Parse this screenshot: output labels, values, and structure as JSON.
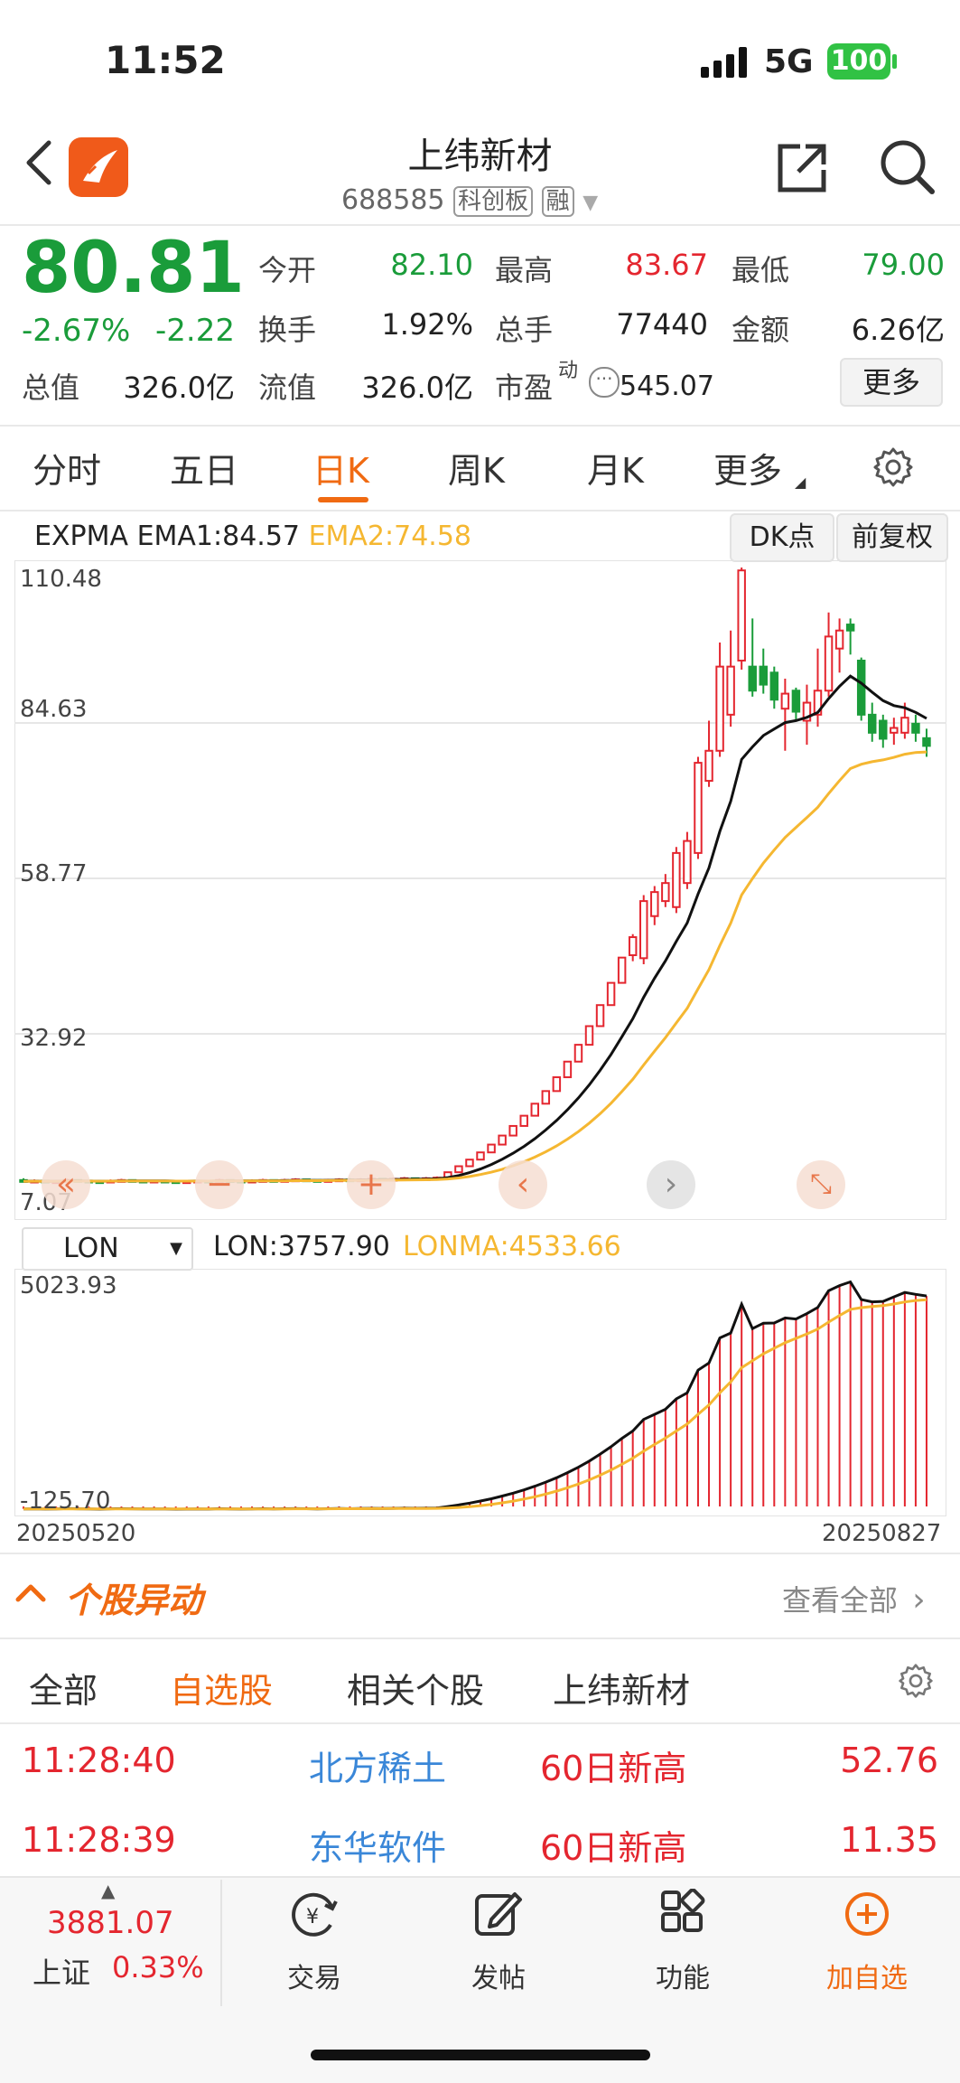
{
  "status_bar": {
    "time": "11:52",
    "network": "5G",
    "battery": "100"
  },
  "header": {
    "title": "上纬新材",
    "code": "688585",
    "board_badge": "科创板",
    "margin_badge": "融"
  },
  "quote": {
    "price": "80.81",
    "change_pct": "-2.67%",
    "change": "-2.22",
    "open_label": "今开",
    "open": "82.10",
    "high_label": "最高",
    "high": "83.67",
    "low_label": "最低",
    "low": "79.00",
    "turnover_label": "换手",
    "turnover": "1.92%",
    "volume_label": "总手",
    "volume": "77440",
    "amount_label": "金额",
    "amount": "6.26亿",
    "mktcap_label": "总值",
    "mktcap": "326.0亿",
    "float_label": "流值",
    "float": "326.0亿",
    "pe_label": "市盈",
    "pe_sup": "动",
    "pe": "545.07",
    "more_button": "更多"
  },
  "tabs": [
    "分时",
    "五日",
    "日K",
    "周K",
    "月K",
    "更多"
  ],
  "active_tab": "日K",
  "indicator": {
    "name": "EXPMA",
    "ema1": "EMA1:84.57",
    "ema2": "EMA2:74.58",
    "dk_button": "DK点",
    "adjust_button": "前复权"
  },
  "price_axis": [
    "110.48",
    "84.63",
    "58.77",
    "32.92",
    "7.07"
  ],
  "sub_indicator": {
    "select": "LON",
    "lon": "LON:3757.90",
    "lonma": "LONMA:4533.66",
    "top": "5023.93",
    "bottom": "-125.70"
  },
  "date_range": {
    "start": "20250520",
    "end": "20250827"
  },
  "colors": {
    "up": "#e4262f",
    "down": "#1a9c3a",
    "accent": "#f06a12",
    "ema2": "#f5b731",
    "link": "#3a87d8"
  },
  "chart_data": {
    "type": "candlestick",
    "ylim": [
      7.07,
      110.48
    ],
    "candles": [
      {
        "o": 8.6,
        "c": 8.4,
        "h": 8.9,
        "l": 8.2
      },
      {
        "o": 8.4,
        "c": 8.5,
        "h": 8.7,
        "l": 8.3
      },
      {
        "o": 8.5,
        "c": 8.3,
        "h": 8.6,
        "l": 8.2
      },
      {
        "o": 8.3,
        "c": 8.4,
        "h": 8.6,
        "l": 8.2
      },
      {
        "o": 8.4,
        "c": 8.6,
        "h": 8.8,
        "l": 8.3
      },
      {
        "o": 8.6,
        "c": 8.5,
        "h": 8.7,
        "l": 8.3
      },
      {
        "o": 8.5,
        "c": 8.4,
        "h": 8.6,
        "l": 8.2
      },
      {
        "o": 8.4,
        "c": 8.3,
        "h": 8.5,
        "l": 8.1
      },
      {
        "o": 8.3,
        "c": 8.5,
        "h": 8.7,
        "l": 8.2
      },
      {
        "o": 8.5,
        "c": 8.6,
        "h": 8.8,
        "l": 8.4
      },
      {
        "o": 8.6,
        "c": 8.5,
        "h": 8.7,
        "l": 8.4
      },
      {
        "o": 8.5,
        "c": 8.4,
        "h": 8.6,
        "l": 8.3
      },
      {
        "o": 8.4,
        "c": 8.5,
        "h": 8.6,
        "l": 8.3
      },
      {
        "o": 8.5,
        "c": 8.4,
        "h": 8.6,
        "l": 8.3
      },
      {
        "o": 8.4,
        "c": 8.3,
        "h": 8.5,
        "l": 8.2
      },
      {
        "o": 8.3,
        "c": 8.4,
        "h": 8.6,
        "l": 8.2
      },
      {
        "o": 8.4,
        "c": 8.5,
        "h": 8.6,
        "l": 8.3
      },
      {
        "o": 8.5,
        "c": 8.4,
        "h": 8.6,
        "l": 8.3
      },
      {
        "o": 8.4,
        "c": 8.6,
        "h": 8.8,
        "l": 8.3
      },
      {
        "o": 8.6,
        "c": 8.5,
        "h": 8.7,
        "l": 8.4
      },
      {
        "o": 8.5,
        "c": 8.4,
        "h": 8.6,
        "l": 8.3
      },
      {
        "o": 8.4,
        "c": 8.5,
        "h": 8.7,
        "l": 8.3
      },
      {
        "o": 8.5,
        "c": 8.6,
        "h": 8.8,
        "l": 8.4
      },
      {
        "o": 8.6,
        "c": 8.5,
        "h": 8.7,
        "l": 8.4
      },
      {
        "o": 8.5,
        "c": 8.6,
        "h": 8.8,
        "l": 8.4
      },
      {
        "o": 8.6,
        "c": 8.7,
        "h": 8.9,
        "l": 8.5
      },
      {
        "o": 8.7,
        "c": 8.6,
        "h": 8.8,
        "l": 8.5
      },
      {
        "o": 8.6,
        "c": 8.5,
        "h": 8.7,
        "l": 8.4
      },
      {
        "o": 8.5,
        "c": 8.6,
        "h": 8.8,
        "l": 8.4
      },
      {
        "o": 8.6,
        "c": 8.7,
        "h": 8.9,
        "l": 8.5
      },
      {
        "o": 8.7,
        "c": 8.6,
        "h": 8.9,
        "l": 8.5
      },
      {
        "o": 8.6,
        "c": 8.7,
        "h": 8.9,
        "l": 8.5
      },
      {
        "o": 8.7,
        "c": 8.8,
        "h": 9.0,
        "l": 8.6
      },
      {
        "o": 8.8,
        "c": 8.7,
        "h": 8.9,
        "l": 8.6
      },
      {
        "o": 8.7,
        "c": 8.8,
        "h": 9.0,
        "l": 8.6
      },
      {
        "o": 8.8,
        "c": 8.9,
        "h": 9.1,
        "l": 8.7
      },
      {
        "o": 8.9,
        "c": 8.8,
        "h": 9.0,
        "l": 8.7
      },
      {
        "o": 8.8,
        "c": 8.9,
        "h": 9.1,
        "l": 8.7
      },
      {
        "o": 8.9,
        "c": 9.0,
        "h": 9.2,
        "l": 8.8
      },
      {
        "o": 9.0,
        "c": 9.9,
        "h": 9.9,
        "l": 9.0
      },
      {
        "o": 9.9,
        "c": 10.9,
        "h": 10.9,
        "l": 9.9
      },
      {
        "o": 10.9,
        "c": 12.0,
        "h": 12.0,
        "l": 10.9
      },
      {
        "o": 12.0,
        "c": 13.2,
        "h": 13.2,
        "l": 12.0
      },
      {
        "o": 13.2,
        "c": 14.5,
        "h": 14.5,
        "l": 13.2
      },
      {
        "o": 14.5,
        "c": 16.0,
        "h": 16.0,
        "l": 14.5
      },
      {
        "o": 16.0,
        "c": 17.6,
        "h": 17.6,
        "l": 16.0
      },
      {
        "o": 17.6,
        "c": 19.3,
        "h": 19.3,
        "l": 17.6
      },
      {
        "o": 19.3,
        "c": 21.3,
        "h": 21.3,
        "l": 19.3
      },
      {
        "o": 21.3,
        "c": 23.4,
        "h": 23.4,
        "l": 21.3
      },
      {
        "o": 23.4,
        "c": 25.7,
        "h": 25.7,
        "l": 23.4
      },
      {
        "o": 25.7,
        "c": 28.3,
        "h": 28.3,
        "l": 25.7
      },
      {
        "o": 28.3,
        "c": 31.1,
        "h": 31.1,
        "l": 28.3
      },
      {
        "o": 31.1,
        "c": 34.2,
        "h": 34.2,
        "l": 31.1
      },
      {
        "o": 34.2,
        "c": 37.7,
        "h": 37.7,
        "l": 34.2
      },
      {
        "o": 37.7,
        "c": 41.4,
        "h": 41.4,
        "l": 37.7
      },
      {
        "o": 41.4,
        "c": 45.6,
        "h": 45.6,
        "l": 41.4
      },
      {
        "o": 46.0,
        "c": 49.0,
        "h": 49.5,
        "l": 45.0
      },
      {
        "o": 45.5,
        "c": 55.0,
        "h": 56.0,
        "l": 44.5
      },
      {
        "o": 52.5,
        "c": 56.5,
        "h": 57.5,
        "l": 51.0
      },
      {
        "o": 55.0,
        "c": 58.0,
        "h": 59.5,
        "l": 54.0
      },
      {
        "o": 54.0,
        "c": 63.0,
        "h": 64.0,
        "l": 53.0
      },
      {
        "o": 58.0,
        "c": 65.0,
        "h": 66.5,
        "l": 57.0
      },
      {
        "o": 63.0,
        "c": 78.0,
        "h": 79.0,
        "l": 62.0
      },
      {
        "o": 75.0,
        "c": 80.0,
        "h": 85.0,
        "l": 74.0
      },
      {
        "o": 80.0,
        "c": 94.0,
        "h": 98.0,
        "l": 79.0
      },
      {
        "o": 86.0,
        "c": 94.0,
        "h": 100.0,
        "l": 84.0
      },
      {
        "o": 95.0,
        "c": 110.0,
        "h": 110.48,
        "l": 93.5
      },
      {
        "o": 94.0,
        "c": 90.0,
        "h": 102.0,
        "l": 89.0
      },
      {
        "o": 94.0,
        "c": 91.0,
        "h": 97.0,
        "l": 89.5
      },
      {
        "o": 93.0,
        "c": 88.5,
        "h": 94.0,
        "l": 87.0
      },
      {
        "o": 87.0,
        "c": 89.5,
        "h": 92.0,
        "l": 80.0
      },
      {
        "o": 90.0,
        "c": 86.5,
        "h": 90.5,
        "l": 85.0
      },
      {
        "o": 85.0,
        "c": 88.0,
        "h": 91.0,
        "l": 81.0
      },
      {
        "o": 86.0,
        "c": 90.0,
        "h": 97.0,
        "l": 84.0
      },
      {
        "o": 90.0,
        "c": 99.0,
        "h": 103.0,
        "l": 89.0
      },
      {
        "o": 97.0,
        "c": 100.0,
        "h": 102.0,
        "l": 93.0
      },
      {
        "o": 101.0,
        "c": 100.0,
        "h": 102.0,
        "l": 96.0
      },
      {
        "o": 95.0,
        "c": 86.0,
        "h": 95.5,
        "l": 85.0
      },
      {
        "o": 86.0,
        "c": 83.0,
        "h": 88.0,
        "l": 81.5
      },
      {
        "o": 85.0,
        "c": 82.0,
        "h": 86.0,
        "l": 80.5
      },
      {
        "o": 83.0,
        "c": 83.8,
        "h": 85.5,
        "l": 81.0
      },
      {
        "o": 83.0,
        "c": 85.5,
        "h": 88.0,
        "l": 82.0
      },
      {
        "o": 84.5,
        "c": 83.0,
        "h": 86.0,
        "l": 81.5
      },
      {
        "o": 82.1,
        "c": 80.81,
        "h": 83.67,
        "l": 79.0
      }
    ],
    "lon_range": [
      -125.7,
      5023.93
    ]
  },
  "movement": {
    "title": "个股异动",
    "view_all": "查看全部"
  },
  "movement_tabs": [
    "全部",
    "自选股",
    "相关个股",
    "上纬新材"
  ],
  "movement_active": "自选股",
  "movement_rows": [
    {
      "time": "11:28:40",
      "name": "北方稀土",
      "event": "60日新高",
      "price": "52.76"
    },
    {
      "time": "11:28:39",
      "name": "东华软件",
      "event": "60日新高",
      "price": "11.35"
    }
  ],
  "bottom_nav": {
    "index_value": "3881.07",
    "index_name": "上证",
    "index_pct": "0.33%",
    "trade": "交易",
    "post": "发帖",
    "functions": "功能",
    "add_watch": "加自选"
  }
}
